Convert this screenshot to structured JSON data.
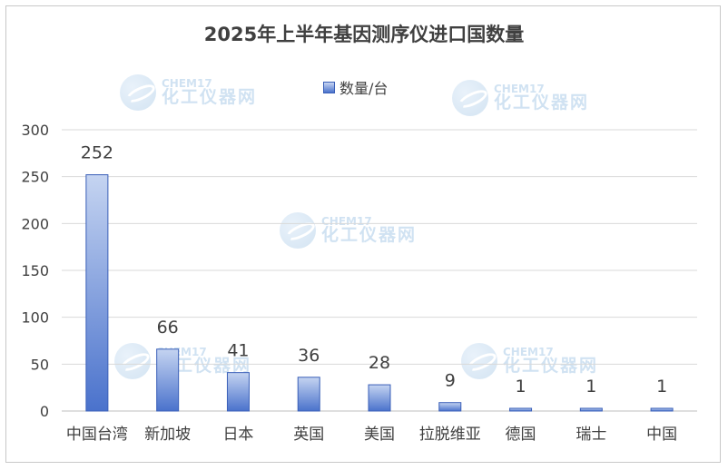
{
  "chart_data": {
    "type": "bar",
    "title": "2025年上半年基因测序仪进口国数量",
    "categories": [
      "中国台湾",
      "新加坡",
      "日本",
      "英国",
      "美国",
      "拉脱维亚",
      "德国",
      "瑞士",
      "中国"
    ],
    "series": [
      {
        "name": "数量/台",
        "values": [
          252,
          66,
          41,
          36,
          28,
          9,
          1,
          1,
          1
        ]
      }
    ],
    "ylim": [
      0,
      300
    ],
    "yticks": [
      0,
      50,
      100,
      150,
      200,
      250,
      300
    ],
    "grid": true,
    "legend_position": "top",
    "bar_color": "#4a72cc"
  },
  "watermark": {
    "top_text": "CHEM17",
    "bottom_text": "化工仪器网"
  }
}
